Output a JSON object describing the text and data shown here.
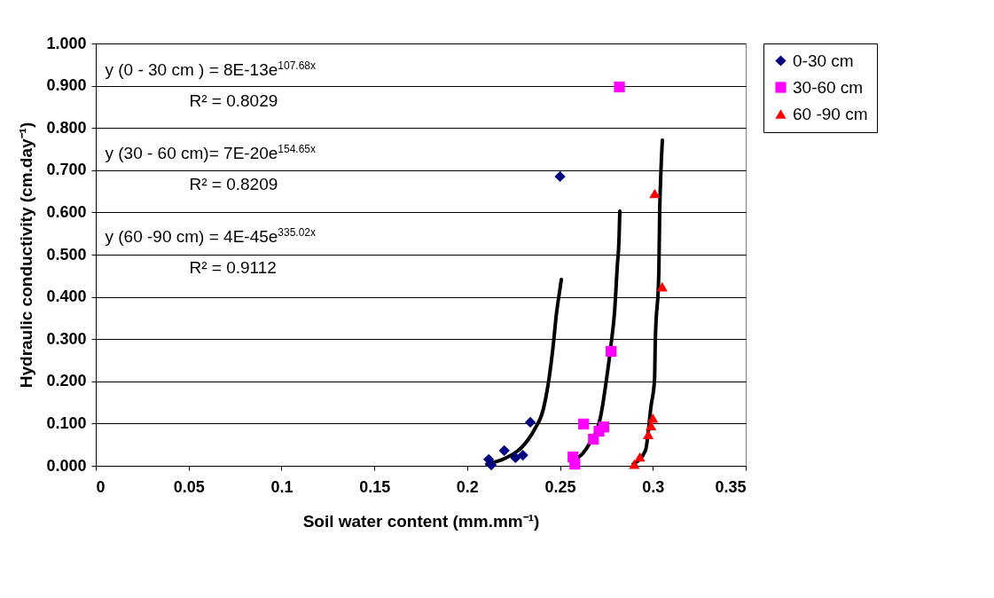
{
  "chart_data": {
    "type": "scatter",
    "xlabel": "Soil water content (mm.mm⁻¹)",
    "ylabel": "Hydraulic conductivity (cm.day⁻¹)",
    "xlim": [
      0,
      0.35
    ],
    "xticks": [
      {
        "value": 0,
        "label": "0"
      },
      0.05,
      0.1,
      0.15,
      0.2,
      0.25,
      0.3,
      0.35
    ],
    "ylim": [
      0,
      1
    ],
    "yticks": [
      {
        "value": 0,
        "label": "0.000"
      },
      {
        "value": 0.1,
        "label": "0.100"
      },
      {
        "value": 0.2,
        "label": "0.200"
      },
      {
        "value": 0.3,
        "label": "0.300"
      },
      {
        "value": 0.4,
        "label": "0.400"
      },
      {
        "value": 0.5,
        "label": "0.500"
      },
      {
        "value": 0.6,
        "label": "0.600"
      },
      {
        "value": 0.7,
        "label": "0.700"
      },
      {
        "value": 0.8,
        "label": "0.800"
      },
      {
        "value": 0.9,
        "label": "0.900"
      },
      {
        "value": 1,
        "label": "1.000"
      }
    ],
    "grid": "y",
    "legend": "right",
    "annotations": [
      "y (0 - 30 cm ) = 8E-13e$^{107.68x}$",
      "R² = 0.8029",
      "y (30 - 60 cm)= 7E-20e$^{154.65x}$",
      "R² = 0.8209",
      "y (60 -90 cm) = 4E-45e$^{335.02x}$",
      "R² = 0.9112"
    ],
    "series": [
      {
        "name": "0-30 cm",
        "marker": "diamond",
        "color": "#000080",
        "x": [
          0.2116,
          0.213,
          0.22,
          0.226,
          0.23,
          0.234,
          0.25
        ],
        "values": [
          0.015,
          0.002,
          0.036,
          0.019,
          0.025,
          0.103,
          0.685
        ]
      },
      {
        "name": "30-60 cm",
        "marker": "square",
        "color": "#ff00ff",
        "x": [
          0.282,
          0.2775,
          0.2627,
          0.2736,
          0.271,
          0.268,
          0.257,
          0.258
        ],
        "values": [
          0.897,
          0.271,
          0.099,
          0.092,
          0.082,
          0.063,
          0.021,
          0.004
        ]
      },
      {
        "name": "60 -90 cm",
        "marker": "triangle",
        "color": "#ff0000",
        "x": [
          0.301,
          0.305,
          0.3,
          0.299,
          0.2975,
          0.293,
          0.29
        ],
        "values": [
          0.645,
          0.424,
          0.113,
          0.095,
          0.074,
          0.021,
          0.004
        ]
      },
      {
        "type": "line",
        "color": "#000000",
        "x": [
          0.2106,
          0.221,
          0.229,
          0.236,
          0.241,
          0.244,
          0.2464,
          0.248,
          0.2498,
          0.2507
        ],
        "values": [
          0.004,
          0.019,
          0.042,
          0.084,
          0.134,
          0.204,
          0.288,
          0.357,
          0.414,
          0.441
        ]
      },
      {
        "type": "line",
        "color": "#000000",
        "x": [
          0.257,
          0.2655,
          0.272,
          0.275,
          0.2775,
          0.2794,
          0.2808,
          0.2818,
          0.2822
        ],
        "values": [
          0.011,
          0.05,
          0.12,
          0.204,
          0.288,
          0.366,
          0.471,
          0.54,
          0.603
        ]
      },
      {
        "type": "line",
        "color": "#000000",
        "x": [
          0.2894,
          0.296,
          0.299,
          0.3009,
          0.3013,
          0.3032,
          0.3037,
          0.3042,
          0.3051
        ],
        "values": [
          0.004,
          0.036,
          0.141,
          0.204,
          0.294,
          0.456,
          0.609,
          0.681,
          0.771
        ]
      }
    ]
  }
}
